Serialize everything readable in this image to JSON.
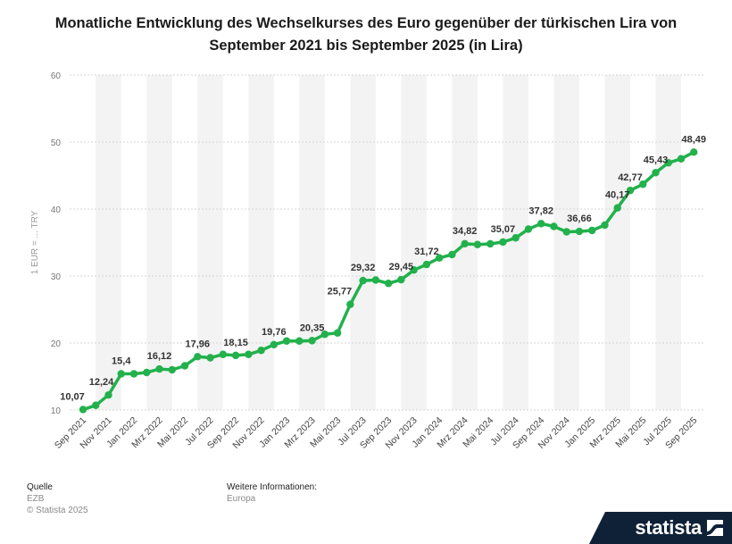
{
  "title": "Monatliche Entwicklung des Wechselkurses des Euro gegenüber der türkischen Lira von September 2021 bis September 2025 (in Lira)",
  "footer": {
    "source_heading": "Quelle",
    "source_value": "EZB",
    "copyright": "© Statista 2025",
    "info_heading": "Weitere Informationen:",
    "info_value": "Europa"
  },
  "logo": {
    "text": "statista",
    "icon": "statista-wave-icon"
  },
  "colors": {
    "line": "#22b14c",
    "band": "#f3f3f3",
    "grid": "#d4d4d4",
    "label": "#333333"
  },
  "chart_data": {
    "type": "line",
    "title": "Monatliche Entwicklung des Wechselkurses des Euro gegenüber der türkischen Lira von September 2021 bis September 2025 (in Lira)",
    "xlabel": "",
    "ylabel": "1 EUR = ... TRY",
    "ylim": [
      10,
      60
    ],
    "yticks": [
      10,
      20,
      30,
      40,
      50,
      60
    ],
    "grid": true,
    "x_tick_labels": [
      "Sep 2021",
      "Nov 2021",
      "Jan 2022",
      "Mrz 2022",
      "Mai 2022",
      "Jul 2022",
      "Sep 2022",
      "Nov 2022",
      "Jan 2023",
      "Mrz 2023",
      "Mai 2023",
      "Jul 2023",
      "Sep 2023",
      "Nov 2023",
      "Jan 2024",
      "Mrz 2024",
      "Mai 2024",
      "Jul 2024",
      "Sep 2024",
      "Nov 2024",
      "Jan 2025",
      "Mrz 2025",
      "Mai 2025",
      "Jul 2025",
      "Sep 2025"
    ],
    "values": [
      10.07,
      10.7,
      12.24,
      15.4,
      15.4,
      15.6,
      16.12,
      16.0,
      16.6,
      17.96,
      17.8,
      18.3,
      18.15,
      18.3,
      18.9,
      19.76,
      20.3,
      20.3,
      20.35,
      21.3,
      21.5,
      25.77,
      29.32,
      29.4,
      28.9,
      29.45,
      30.9,
      31.72,
      32.7,
      33.2,
      34.82,
      34.7,
      34.8,
      35.07,
      35.7,
      37.0,
      37.82,
      37.4,
      36.6,
      36.66,
      36.8,
      37.6,
      40.17,
      42.77,
      43.7,
      45.43,
      46.9,
      47.5,
      48.49
    ],
    "data_labels": [
      {
        "index": 0,
        "text": "10,07"
      },
      {
        "index": 2,
        "text": "12,24"
      },
      {
        "index": 3,
        "text": "15,4"
      },
      {
        "index": 6,
        "text": "16,12"
      },
      {
        "index": 9,
        "text": "17,96"
      },
      {
        "index": 12,
        "text": "18,15"
      },
      {
        "index": 15,
        "text": "19,76"
      },
      {
        "index": 18,
        "text": "20,35"
      },
      {
        "index": 21,
        "text": "25,77"
      },
      {
        "index": 22,
        "text": "29,32"
      },
      {
        "index": 25,
        "text": "29,45"
      },
      {
        "index": 27,
        "text": "31,72"
      },
      {
        "index": 30,
        "text": "34,82"
      },
      {
        "index": 33,
        "text": "35,07"
      },
      {
        "index": 36,
        "text": "37,82"
      },
      {
        "index": 39,
        "text": "36,66"
      },
      {
        "index": 42,
        "text": "40,17"
      },
      {
        "index": 43,
        "text": "42,77"
      },
      {
        "index": 45,
        "text": "45,43"
      },
      {
        "index": 48,
        "text": "48,49"
      }
    ]
  }
}
